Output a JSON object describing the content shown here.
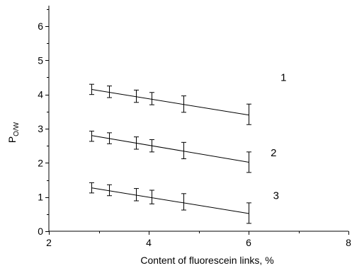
{
  "chart_data": {
    "type": "scatter",
    "title": "",
    "xlabel": "Content of fluorescein links, %",
    "ylabel_main": "P",
    "ylabel_sub": "O/W",
    "xlim": [
      2,
      8
    ],
    "ylim": [
      0,
      6.6
    ],
    "x_ticks": [
      2,
      4,
      6,
      8
    ],
    "y_ticks": [
      0,
      1,
      2,
      3,
      4,
      5,
      6
    ],
    "x_tick_labels": [
      "2",
      "4",
      "6",
      "8"
    ],
    "y_tick_labels": [
      "0",
      "1",
      "2",
      "3",
      "4",
      "5",
      "6"
    ],
    "grid": false,
    "legend": "none",
    "error_bars": true,
    "series": [
      {
        "name": "1",
        "x": [
          2.85,
          3.2,
          3.75,
          4.05,
          4.7,
          6.0
        ],
        "y": [
          4.15,
          4.08,
          3.95,
          3.88,
          3.72,
          3.42
        ],
        "err": [
          0.15,
          0.17,
          0.18,
          0.18,
          0.24,
          0.3
        ],
        "fit": {
          "x": [
            2.85,
            6.0
          ],
          "y": [
            4.15,
            3.4
          ]
        },
        "label_pos": {
          "x": 6.7,
          "y": 4.5
        }
      },
      {
        "name": "2",
        "x": [
          2.85,
          3.2,
          3.75,
          4.05,
          4.7,
          6.0
        ],
        "y": [
          2.78,
          2.72,
          2.58,
          2.5,
          2.36,
          2.02
        ],
        "err": [
          0.15,
          0.16,
          0.18,
          0.18,
          0.24,
          0.3
        ],
        "fit": {
          "x": [
            2.85,
            6.0
          ],
          "y": [
            2.8,
            2.02
          ]
        },
        "label_pos": {
          "x": 6.5,
          "y": 2.3
        }
      },
      {
        "name": "3",
        "x": [
          2.85,
          3.2,
          3.75,
          4.05,
          4.7,
          6.0
        ],
        "y": [
          1.27,
          1.2,
          1.07,
          1.0,
          0.86,
          0.53
        ],
        "err": [
          0.15,
          0.16,
          0.18,
          0.2,
          0.24,
          0.3
        ],
        "fit": {
          "x": [
            2.85,
            6.0
          ],
          "y": [
            1.27,
            0.52
          ]
        },
        "label_pos": {
          "x": 6.55,
          "y": 1.05
        }
      }
    ]
  }
}
